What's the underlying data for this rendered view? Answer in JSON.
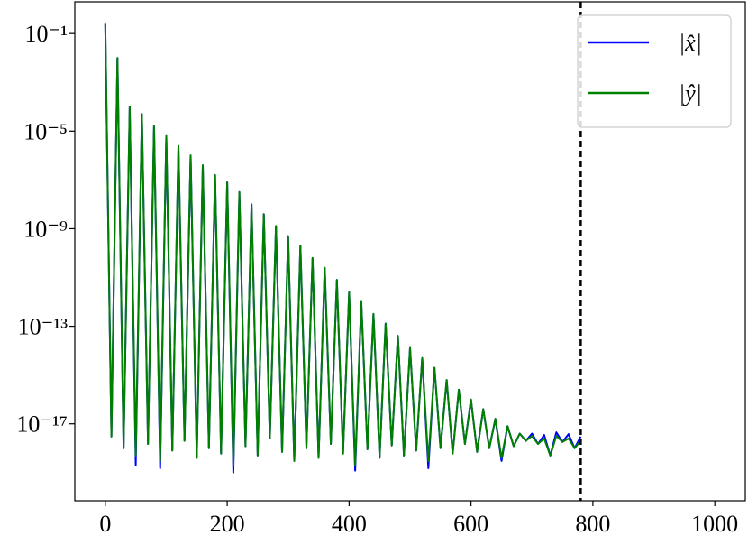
{
  "chart_data": {
    "type": "line",
    "log_y": true,
    "legend": "upper right",
    "vline_x": 780,
    "vline_color": "#000000",
    "x": [
      0,
      10,
      20,
      30,
      40,
      50,
      60,
      70,
      80,
      90,
      100,
      110,
      120,
      130,
      140,
      150,
      160,
      170,
      180,
      190,
      200,
      210,
      220,
      230,
      240,
      250,
      260,
      270,
      280,
      290,
      300,
      310,
      320,
      330,
      340,
      350,
      360,
      370,
      380,
      390,
      400,
      410,
      420,
      430,
      440,
      450,
      460,
      470,
      480,
      490,
      500,
      510,
      520,
      530,
      540,
      550,
      560,
      570,
      580,
      590,
      600,
      610,
      620,
      630,
      640,
      650,
      660,
      670,
      680,
      690,
      700,
      710,
      720,
      730,
      740,
      750,
      760,
      770,
      780
    ],
    "series": [
      {
        "name": "|x̂|",
        "color": "#0000ff",
        "values": [
          0.25,
          3e-18,
          0.01,
          1e-18,
          0.0001,
          2e-19,
          5e-05,
          1.5e-18,
          1.6e-05,
          1.5e-19,
          6.3e-06,
          8e-19,
          2.5e-06,
          2e-18,
          1e-06,
          4e-19,
          4e-07,
          1e-18,
          1.6e-07,
          6e-19,
          8e-08,
          1e-19,
          3.2e-08,
          1.2e-18,
          1e-08,
          5e-19,
          4e-09,
          2.5e-18,
          1.3e-09,
          7e-19,
          5e-10,
          3e-19,
          2e-10,
          1e-18,
          6.3e-11,
          4e-19,
          2.5e-11,
          1.5e-18,
          8e-12,
          6e-19,
          2.5e-12,
          1.2e-19,
          1e-12,
          9e-19,
          3.2e-13,
          4e-19,
          1.3e-13,
          1.3e-18,
          4e-14,
          5e-19,
          1.3e-14,
          8e-19,
          5e-15,
          1.5e-19,
          2e-15,
          1e-18,
          6.3e-16,
          6e-19,
          2.5e-16,
          1.5e-18,
          1e-16,
          7e-19,
          4e-17,
          1e-18,
          1.6e-17,
          3e-19,
          8e-18,
          1.2e-18,
          4e-18,
          2e-18,
          4e-18,
          1.5e-18,
          3.5e-18,
          5e-19,
          4.5e-18,
          1.8e-18,
          3.8e-18,
          1e-18,
          3e-18
        ]
      },
      {
        "name": "|ŷ|",
        "color": "#008000",
        "values": [
          0.25,
          3e-18,
          0.01,
          1e-18,
          0.0001,
          5e-19,
          5e-05,
          1.5e-18,
          1.6e-05,
          3e-19,
          6.3e-06,
          8e-19,
          2.5e-06,
          2e-18,
          1e-06,
          4e-19,
          4e-07,
          1e-18,
          1.6e-07,
          6e-19,
          8e-08,
          2e-19,
          3.2e-08,
          1.2e-18,
          1e-08,
          5e-19,
          4e-09,
          2.5e-18,
          1.3e-09,
          7e-19,
          5e-10,
          3e-19,
          2e-10,
          1e-18,
          6.3e-11,
          4e-19,
          2.5e-11,
          1.5e-18,
          8e-12,
          6e-19,
          2.5e-12,
          2e-19,
          1e-12,
          9e-19,
          3.2e-13,
          4e-19,
          1.3e-13,
          1.3e-18,
          4e-14,
          5e-19,
          1.3e-14,
          8e-19,
          5e-15,
          3e-19,
          2e-15,
          1e-18,
          6.3e-16,
          6e-19,
          2.5e-16,
          1.5e-18,
          1e-16,
          7e-19,
          4e-17,
          1e-18,
          1.6e-17,
          4e-19,
          8e-18,
          1.2e-18,
          4e-18,
          2e-18,
          3.2e-18,
          1.5e-18,
          2.5e-18,
          5e-19,
          3.2e-18,
          1.8e-18,
          2.5e-18,
          1e-18,
          2e-18
        ]
      }
    ],
    "xlim": [
      -50,
      1050
    ],
    "xticks": [
      0,
      200,
      400,
      600,
      800,
      1000
    ],
    "ylim": [
      7e-21,
      2
    ],
    "yticks": [
      {
        "value": 0.1,
        "label": "10⁻¹"
      },
      {
        "value": 1e-05,
        "label": "10⁻⁵"
      },
      {
        "value": 1e-09,
        "label": "10⁻⁹"
      },
      {
        "value": 1e-13,
        "label": "10⁻¹³"
      },
      {
        "value": 1e-17,
        "label": "10⁻¹⁷"
      }
    ]
  }
}
